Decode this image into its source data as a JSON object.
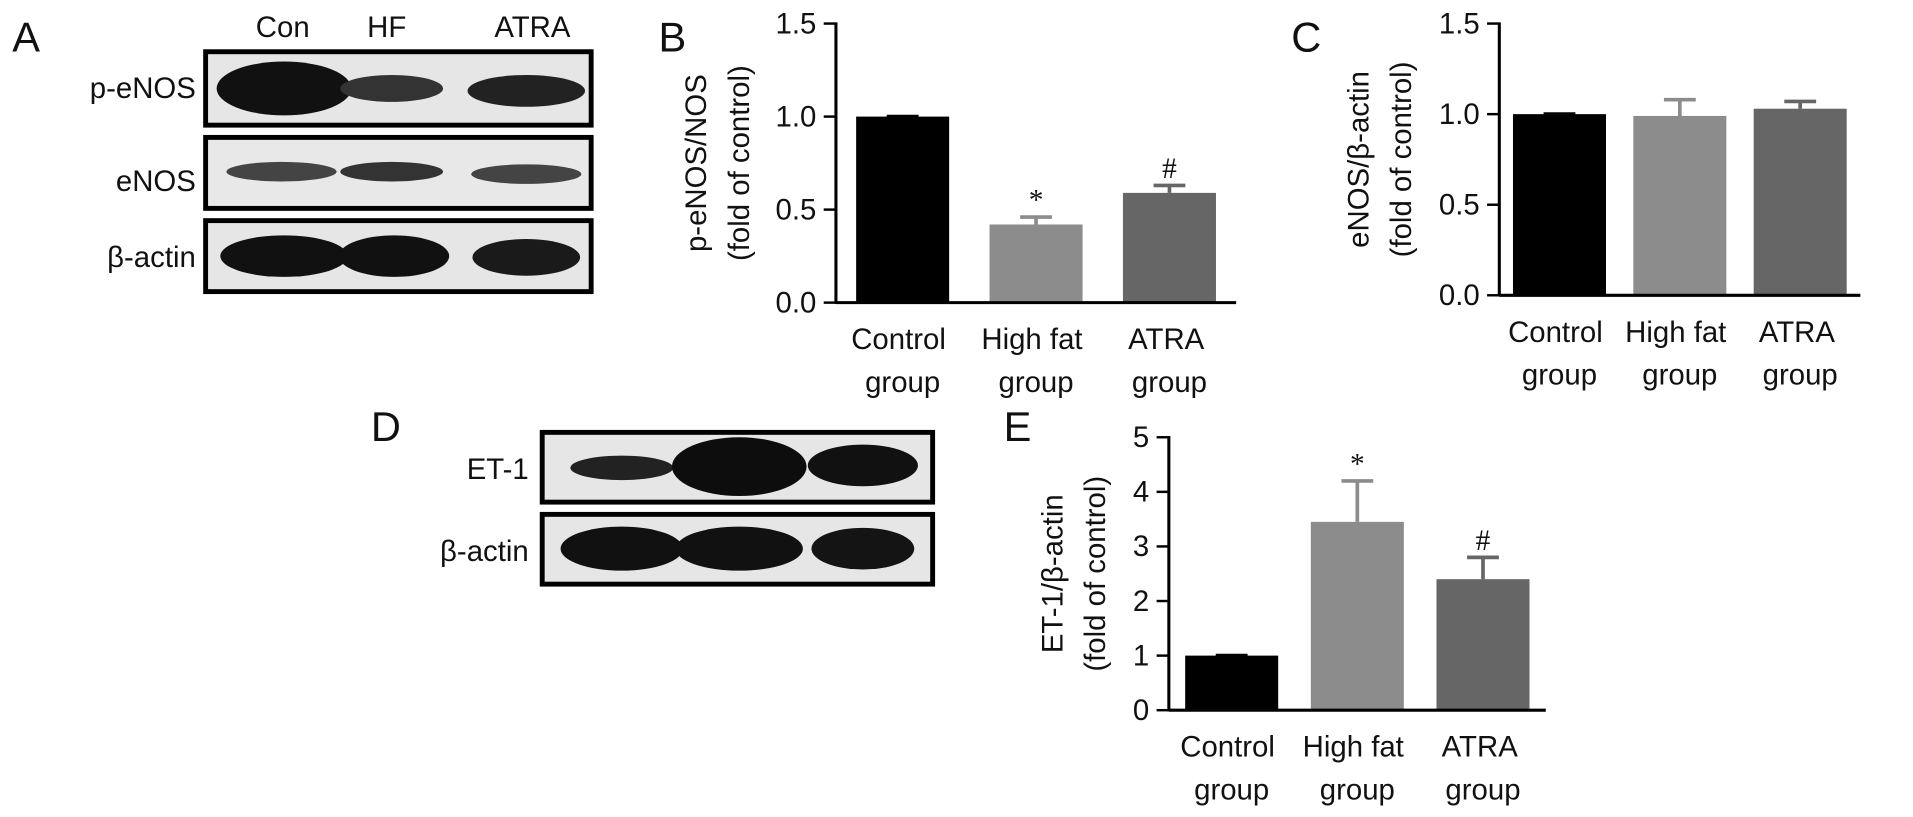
{
  "blots": [
    {
      "panel": "A",
      "lanes": [
        "Con",
        "HF",
        "ATRA"
      ],
      "rows": [
        "p-eNOS",
        "eNOS",
        "β-actin"
      ]
    },
    {
      "panel": "D",
      "rows": [
        "ET-1",
        "β-actin"
      ]
    }
  ],
  "chart_data": [
    {
      "type": "bar",
      "panel": "B",
      "ylabel": [
        "p-eNOS/NOS",
        "(fold of control)"
      ],
      "categories": [
        "Control group",
        "High fat group",
        "ATRA group"
      ],
      "values": [
        1.0,
        0.42,
        0.59
      ],
      "errors": [
        0,
        0.04,
        0.04
      ],
      "annotations": [
        null,
        "*",
        "#"
      ],
      "colors": [
        "#000000",
        "#8c8c8c",
        "#666666"
      ],
      "ylim": [
        0,
        1.5
      ],
      "yticks": [
        {
          "value": 0,
          "label": "0.0"
        },
        0.5,
        {
          "value": 1,
          "label": "1.0"
        },
        1.5
      ]
    },
    {
      "type": "bar",
      "panel": "C",
      "ylabel": [
        "eNOS/β-actin",
        "(fold of control)"
      ],
      "categories": [
        "Control group",
        "High fat group",
        "ATRA group"
      ],
      "values": [
        1.0,
        0.99,
        1.03
      ],
      "errors": [
        0,
        0.09,
        0.04
      ],
      "annotations": [
        null,
        null,
        null
      ],
      "colors": [
        "#000000",
        "#8c8c8c",
        "#666666"
      ],
      "ylim": [
        0,
        1.5
      ],
      "yticks": [
        {
          "value": 0,
          "label": "0.0"
        },
        0.5,
        {
          "value": 1,
          "label": "1.0"
        },
        1.5
      ]
    },
    {
      "type": "bar",
      "panel": "E",
      "ylabel": [
        "ET-1/β-actin",
        "(fold of control)"
      ],
      "categories": [
        "Control group",
        "High fat group",
        "ATRA group"
      ],
      "values": [
        1,
        3.45,
        2.4
      ],
      "errors": [
        0,
        0.75,
        0.4
      ],
      "annotations": [
        null,
        "*",
        "#"
      ],
      "colors": [
        "#000000",
        "#8c8c8c",
        "#666666"
      ],
      "ylim": [
        0,
        5
      ],
      "yticks": [
        0,
        1,
        2,
        3,
        4,
        5
      ]
    }
  ]
}
